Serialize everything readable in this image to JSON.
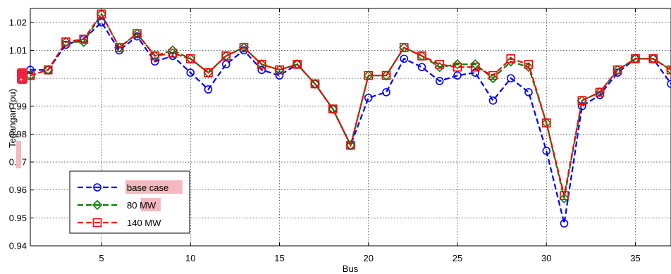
{
  "chart_data": {
    "type": "line",
    "title": "",
    "xlabel": "Bus",
    "ylabel": "Tegangan (pu)",
    "xlim": [
      1,
      37
    ],
    "ylim": [
      0.94,
      1.025
    ],
    "xticks": [
      5,
      10,
      15,
      20,
      25,
      30,
      35
    ],
    "yticks": [
      0.94,
      0.95,
      0.96,
      0.97,
      0.98,
      0.99,
      1,
      1.01,
      1.02
    ],
    "ytick_labels": [
      "0.94",
      "0.95",
      "0.96",
      "0.97",
      "0.98",
      "0.99",
      "1",
      "1.01",
      "1.02"
    ],
    "grid": true,
    "legend_position": "bottom-left",
    "x": [
      1,
      2,
      3,
      4,
      5,
      6,
      7,
      8,
      9,
      10,
      11,
      12,
      13,
      14,
      15,
      16,
      17,
      18,
      19,
      20,
      21,
      22,
      23,
      24,
      25,
      26,
      27,
      28,
      29,
      30,
      31,
      32,
      33,
      34,
      35,
      36,
      37
    ],
    "series": [
      {
        "name": "base case",
        "color": "#0000ff",
        "marker": "circle",
        "values": [
          1.003,
          1.003,
          1.012,
          1.014,
          1.02,
          1.01,
          1.015,
          1.006,
          1.008,
          1.002,
          0.996,
          1.005,
          1.01,
          1.003,
          1.001,
          1.005,
          0.998,
          0.989,
          0.976,
          0.993,
          0.995,
          1.007,
          1.004,
          0.999,
          1.001,
          1.002,
          0.992,
          1.0,
          0.995,
          0.974,
          0.948,
          0.99,
          0.994,
          1.002,
          1.007,
          1.007,
          0.998
        ]
      },
      {
        "name": "80 MW",
        "color": "#008000",
        "marker": "diamond",
        "values": [
          1.001,
          1.003,
          1.013,
          1.013,
          1.023,
          1.011,
          1.016,
          1.008,
          1.01,
          1.007,
          1.002,
          1.008,
          1.011,
          1.005,
          1.003,
          1.005,
          0.998,
          0.989,
          0.976,
          1.001,
          1.001,
          1.011,
          1.008,
          1.004,
          1.005,
          1.005,
          1.0,
          1.006,
          1.004,
          0.984,
          0.957,
          0.992,
          0.995,
          1.003,
          1.007,
          1.007,
          1.003
        ]
      },
      {
        "name": "140 MW",
        "color": "#ff0000",
        "marker": "square",
        "values": [
          1.001,
          1.003,
          1.013,
          1.014,
          1.023,
          1.011,
          1.016,
          1.008,
          1.009,
          1.007,
          1.002,
          1.008,
          1.011,
          1.005,
          1.003,
          1.005,
          0.998,
          0.989,
          0.976,
          1.001,
          1.001,
          1.011,
          1.008,
          1.005,
          1.004,
          1.004,
          1.001,
          1.007,
          1.005,
          0.984,
          0.958,
          0.992,
          0.995,
          1.003,
          1.007,
          1.007,
          1.003
        ]
      }
    ]
  }
}
